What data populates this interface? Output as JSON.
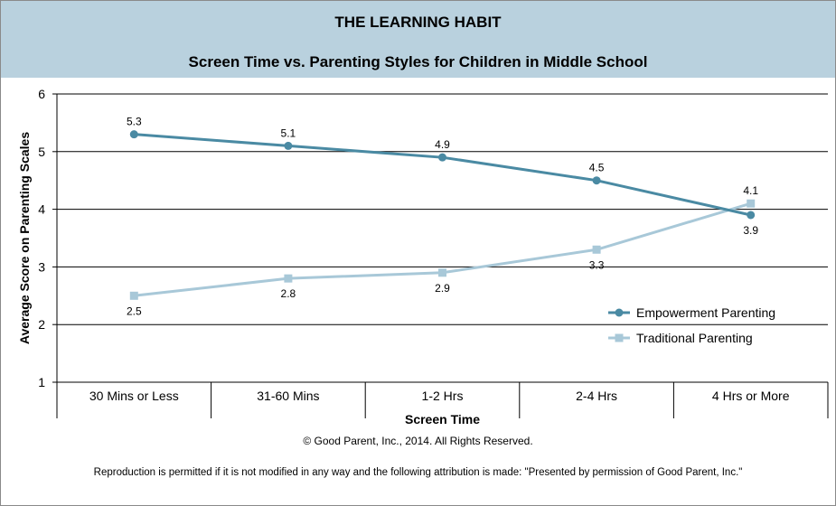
{
  "header": {
    "title": "THE LEARNING HABIT",
    "subtitle": "Screen Time vs. Parenting Styles for Children in Middle School"
  },
  "footer": {
    "copyright": "© Good Parent, Inc., 2014. All Rights Reserved.",
    "reproduction": "Reproduction is permitted if it is not modified in any way and the following attribution is made: \"Presented by permission of Good Parent, Inc.\""
  },
  "chart_data": {
    "type": "line",
    "title": "Screen Time vs. Parenting Styles for Children in Middle School",
    "xlabel": "Screen Time",
    "ylabel": "Average Score on Parenting Scales",
    "categories": [
      "30 Mins or Less",
      "31-60 Mins",
      "1-2 Hrs",
      "2-4 Hrs",
      "4 Hrs or More"
    ],
    "ylim": [
      1,
      6
    ],
    "yticks": [
      1,
      2,
      3,
      4,
      5,
      6
    ],
    "grid": "horizontal",
    "legend_position": "right",
    "series": [
      {
        "name": "Empowerment Parenting",
        "values": [
          5.3,
          5.1,
          4.9,
          4.5,
          3.9
        ],
        "color": "#4a8aa3",
        "marker": "circle"
      },
      {
        "name": "Traditional Parenting",
        "values": [
          2.5,
          2.8,
          2.9,
          3.3,
          4.1
        ],
        "color": "#a8c8d8",
        "marker": "square"
      }
    ]
  }
}
